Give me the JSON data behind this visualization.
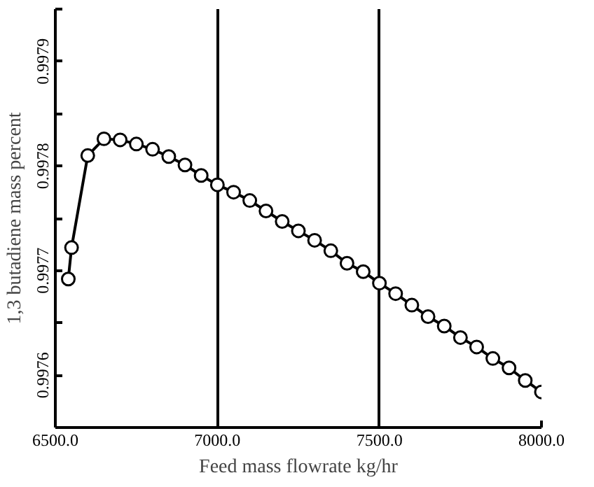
{
  "chart_data": {
    "type": "line",
    "xlabel": "Feed mass flowrate kg/hr",
    "ylabel": "1,3 butadiene mass percent",
    "x": [
      6540,
      6550,
      6600,
      6650,
      6700,
      6750,
      6800,
      6850,
      6900,
      6950,
      7000,
      7050,
      7100,
      7150,
      7200,
      7250,
      7300,
      7350,
      7400,
      7450,
      7500,
      7550,
      7600,
      7650,
      7700,
      7750,
      7800,
      7850,
      7900,
      7950,
      8000
    ],
    "series": [
      {
        "color": "#000000",
        "values": [
          0.997692,
          0.997722,
          0.99781,
          0.997826,
          0.997825,
          0.997821,
          0.997816,
          0.997809,
          0.997801,
          0.997791,
          0.997782,
          0.997775,
          0.997767,
          0.997757,
          0.997747,
          0.997738,
          0.997729,
          0.997719,
          0.997707,
          0.997699,
          0.997688,
          0.997678,
          0.997667,
          0.997656,
          0.997647,
          0.997636,
          0.997627,
          0.997616,
          0.997607,
          0.997595,
          0.997584
        ]
      }
    ],
    "xlim": [
      6500,
      8000
    ],
    "ylim": [
      0.99755,
      0.99795
    ],
    "xticks": [
      {
        "value": 6500,
        "label": "6500.0"
      },
      {
        "value": 7000,
        "label": "7000.0"
      },
      {
        "value": 7500,
        "label": "7500.0"
      },
      {
        "value": 8000,
        "label": "8000.0"
      }
    ],
    "yticks": [
      {
        "value": 0.99755,
        "label": null
      },
      0.9976,
      {
        "value": 0.99765,
        "label": null
      },
      0.9977,
      {
        "value": 0.99775,
        "label": null
      },
      0.9978,
      {
        "value": 0.99785,
        "label": null
      },
      0.9979,
      {
        "value": 0.99795,
        "label": null
      }
    ],
    "grid": "x",
    "marker": "circle",
    "line_style": "solid"
  }
}
